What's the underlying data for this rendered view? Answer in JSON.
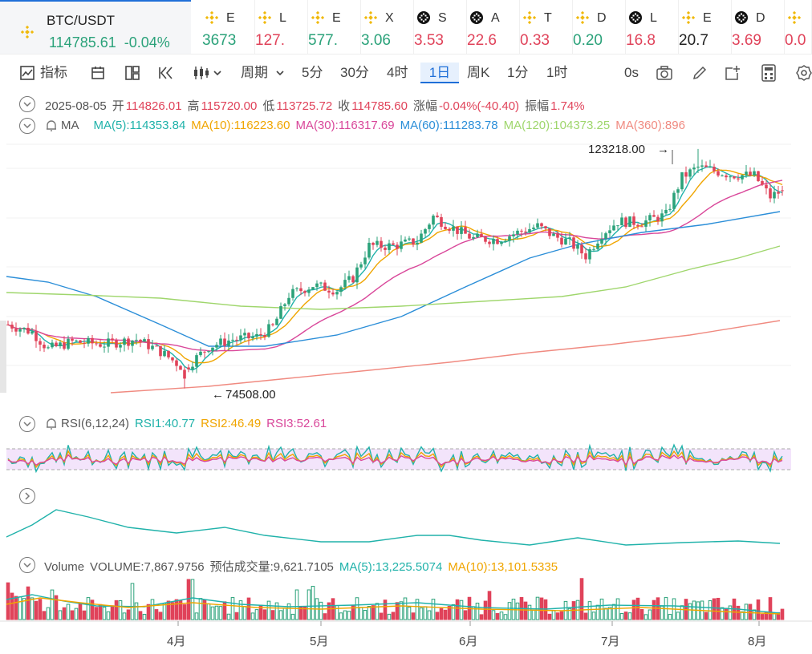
{
  "main_ticker": {
    "symbol": "BTC/USDT",
    "price": "114785.61",
    "change": "-0.04%"
  },
  "tickers": [
    {
      "sym": "E",
      "val": "3673",
      "color": "#2ba27a",
      "icon": "binance-icon"
    },
    {
      "sym": "L",
      "val": "127.",
      "color": "#e0435a",
      "icon": "binance-icon"
    },
    {
      "sym": "E",
      "val": "577.",
      "color": "#2ba27a",
      "icon": "binance-icon"
    },
    {
      "sym": "X",
      "val": "3.06",
      "color": "#2ba27a",
      "icon": "binance-icon"
    },
    {
      "sym": "S",
      "val": "3.53",
      "color": "#e0435a",
      "icon": "chain-icon"
    },
    {
      "sym": "A",
      "val": "22.6",
      "color": "#e0435a",
      "icon": "chain-icon"
    },
    {
      "sym": "T",
      "val": "0.33",
      "color": "#e0435a",
      "icon": "binance-icon"
    },
    {
      "sym": "D",
      "val": "0.20",
      "color": "#2ba27a",
      "icon": "binance-icon"
    },
    {
      "sym": "L",
      "val": "16.8",
      "color": "#e0435a",
      "icon": "chain-icon"
    },
    {
      "sym": "E",
      "val": "20.7",
      "color": "#222222",
      "icon": "binance-icon"
    },
    {
      "sym": "D",
      "val": "3.69",
      "color": "#e0435a",
      "icon": "chain-icon"
    },
    {
      "sym": "",
      "val": "0.0",
      "color": "#e0435a",
      "icon": "binance-icon"
    }
  ],
  "toolbar": {
    "indicators": "指标",
    "period": "周期",
    "intervals": [
      "5分",
      "30分",
      "4时",
      "1日",
      "周K",
      "1分",
      "1时"
    ],
    "active_interval": "1日",
    "countdown": "0s"
  },
  "ohlc": {
    "date": "2025-08-05",
    "open_label": "开",
    "open": "114826.01",
    "high_label": "高",
    "high": "115720.00",
    "low_label": "低",
    "low": "113725.72",
    "close_label": "收",
    "close": "114785.60",
    "change_label": "涨幅",
    "change": "-0.04%(-40.40)",
    "amp_label": "振幅",
    "amp": "1.74%"
  },
  "ma": {
    "label": "MA",
    "ma5": "MA(5):114353.84",
    "ma10": "MA(10):116223.60",
    "ma30": "MA(30):116317.69",
    "ma60": "MA(60):111283.78",
    "ma120": "MA(120):104373.25",
    "ma360": "MA(360):896"
  },
  "rsi": {
    "label": "RSI(6,12,24)",
    "rsi1": "RSI1:40.77",
    "rsi2": "RSI2:46.49",
    "rsi3": "RSI3:52.61"
  },
  "volume": {
    "label": "Volume",
    "vol": "VOLUME:7,867.9756",
    "est": "预估成交量:9,621.7105",
    "ma5": "MA(5):13,225.5074",
    "ma10": "MA(10):13,101.5335"
  },
  "annotations": {
    "high": "123218.00",
    "low": "74508.00"
  },
  "x_axis": [
    "4月",
    "5月",
    "6月",
    "7月",
    "8月"
  ],
  "colors": {
    "up": "#2ba27a",
    "down": "#e0435a",
    "ma5": "#20b2aa",
    "ma10": "#f0a500",
    "ma30": "#d9479a",
    "ma60": "#2b8ed8",
    "ma120": "#9fd66c",
    "ma360": "#f08a80",
    "rsi_band": "#f3e4fb",
    "accent": "#1f6fd8"
  },
  "chart_data": {
    "type": "candlestick",
    "price_range": [
      74508,
      123218
    ],
    "x_labels": [
      "4月",
      "5月",
      "6月",
      "7月",
      "8月"
    ],
    "price_anchors": [
      {
        "t": 0,
        "p": 87500
      },
      {
        "t": 6,
        "p": 86000
      },
      {
        "t": 10,
        "p": 82500
      },
      {
        "t": 16,
        "p": 84000
      },
      {
        "t": 24,
        "p": 83500
      },
      {
        "t": 32,
        "p": 84500
      },
      {
        "t": 38,
        "p": 82000
      },
      {
        "t": 44,
        "p": 78500
      },
      {
        "t": 50,
        "p": 83000
      },
      {
        "t": 56,
        "p": 84500
      },
      {
        "t": 62,
        "p": 85000
      },
      {
        "t": 66,
        "p": 87000
      },
      {
        "t": 70,
        "p": 93500
      },
      {
        "t": 76,
        "p": 95500
      },
      {
        "t": 82,
        "p": 94500
      },
      {
        "t": 86,
        "p": 97000
      },
      {
        "t": 90,
        "p": 103500
      },
      {
        "t": 96,
        "p": 103500
      },
      {
        "t": 102,
        "p": 104500
      },
      {
        "t": 106,
        "p": 109500
      },
      {
        "t": 110,
        "p": 107500
      },
      {
        "t": 116,
        "p": 105000
      },
      {
        "t": 122,
        "p": 104800
      },
      {
        "t": 128,
        "p": 106500
      },
      {
        "t": 132,
        "p": 107500
      },
      {
        "t": 136,
        "p": 105500
      },
      {
        "t": 140,
        "p": 104200
      },
      {
        "t": 144,
        "p": 101500
      },
      {
        "t": 148,
        "p": 106000
      },
      {
        "t": 152,
        "p": 108500
      },
      {
        "t": 158,
        "p": 108300
      },
      {
        "t": 164,
        "p": 109800
      },
      {
        "t": 168,
        "p": 117500
      },
      {
        "t": 172,
        "p": 119500
      },
      {
        "t": 176,
        "p": 118800
      },
      {
        "t": 180,
        "p": 118000
      },
      {
        "t": 186,
        "p": 117800
      },
      {
        "t": 190,
        "p": 113500
      },
      {
        "t": 193,
        "p": 114785
      }
    ]
  }
}
